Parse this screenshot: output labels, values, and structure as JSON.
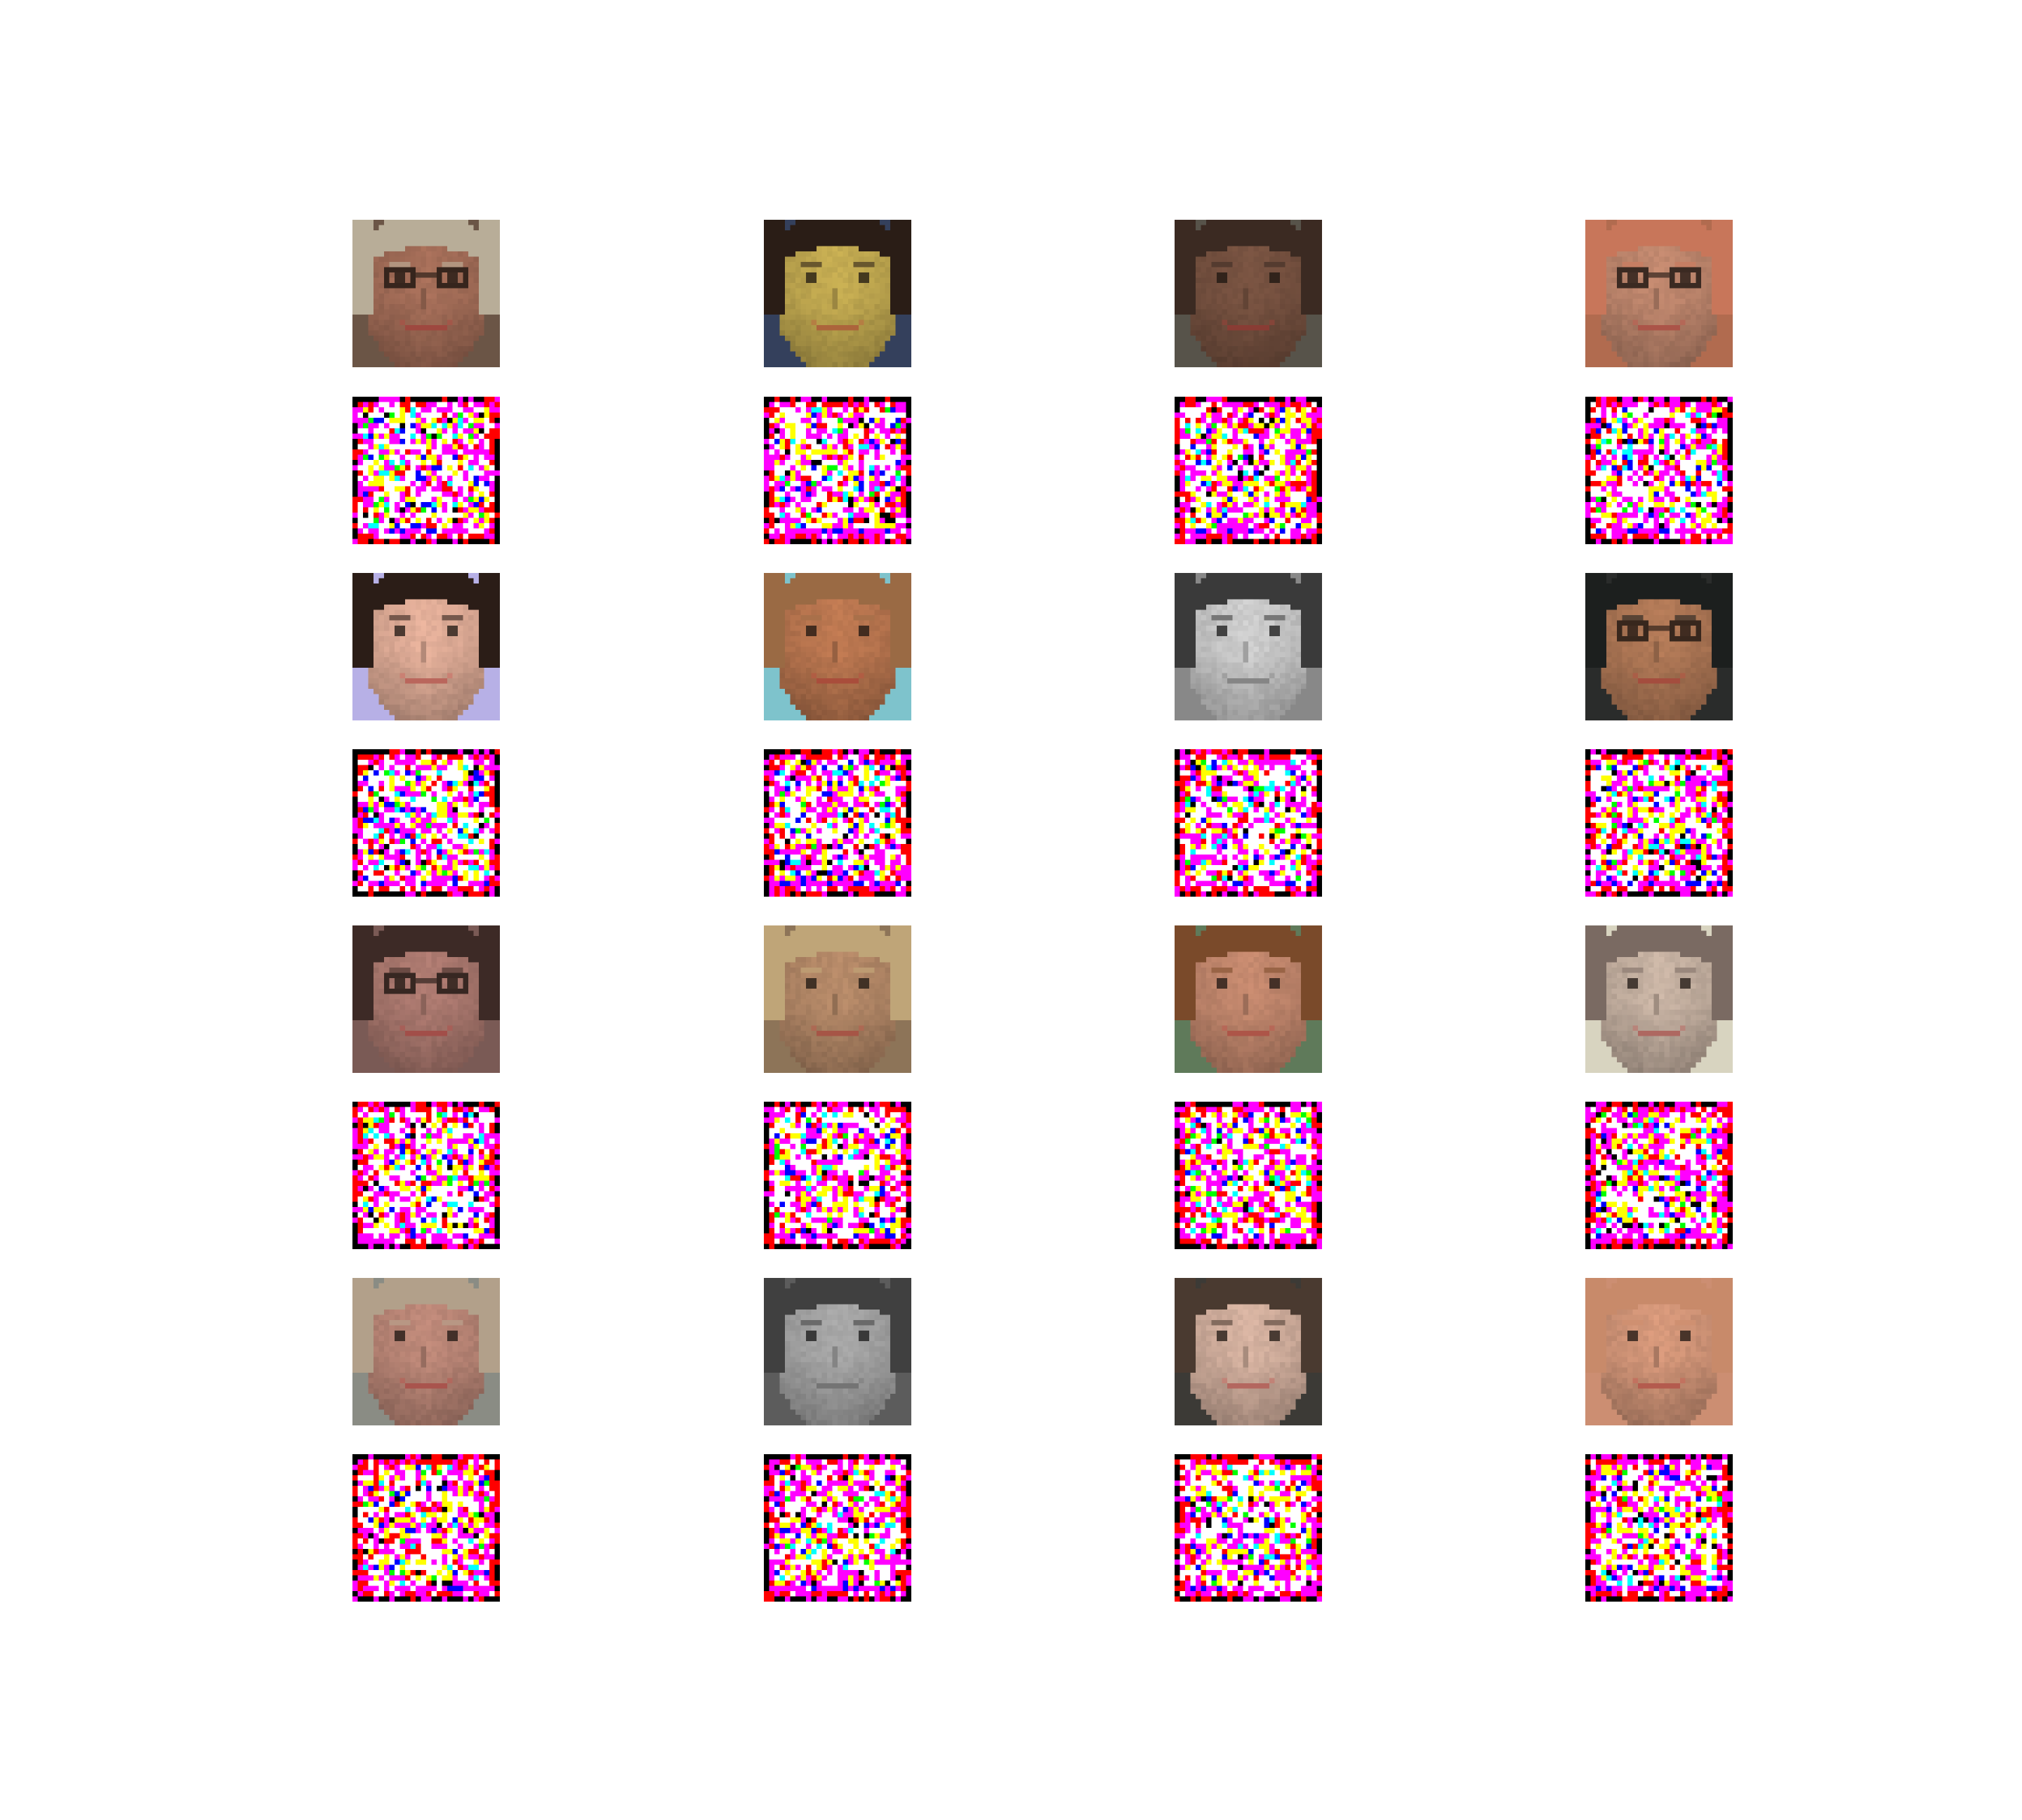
{
  "figure": {
    "background": "#ffffff",
    "grid": {
      "columns": 4,
      "rows": 8
    },
    "row_kinds": [
      "face",
      "noise",
      "face",
      "noise",
      "face",
      "noise",
      "face",
      "noise"
    ],
    "pixels_per_side": 28,
    "noise_palette": [
      "#ff00ff",
      "#ffffff",
      "#ffff00",
      "#ff0000",
      "#000000",
      "#0000ff",
      "#00ffff",
      "#00ff00"
    ],
    "faces": [
      {
        "skin": "#a8705a",
        "hair": "#b8ad98",
        "bg": "#6b5546",
        "glasses": true,
        "grayscale": false
      },
      {
        "skin": "#c6ad52",
        "hair": "#2a1d16",
        "bg": "#34405c",
        "glasses": false,
        "grayscale": false
      },
      {
        "skin": "#7a5442",
        "hair": "#3b2a22",
        "bg": "#57534a",
        "glasses": false,
        "grayscale": false
      },
      {
        "skin": "#c48a70",
        "hair": "#c8765a",
        "bg": "#b16b4f",
        "glasses": true,
        "grayscale": false
      },
      {
        "skin": "#e6b19b",
        "hair": "#2b1d17",
        "bg": "#b7b0e6",
        "glasses": false,
        "grayscale": false
      },
      {
        "skin": "#c07a52",
        "hair": "#9a6a44",
        "bg": "#7ec3cc",
        "glasses": false,
        "grayscale": false
      },
      {
        "skin": "#cfcfcf",
        "hair": "#3a3a3a",
        "bg": "#888888",
        "glasses": false,
        "grayscale": true
      },
      {
        "skin": "#b47b58",
        "hair": "#1c1f1e",
        "bg": "#2a2c2b",
        "glasses": true,
        "grayscale": false
      },
      {
        "skin": "#b07c72",
        "hair": "#3d2a26",
        "bg": "#7a5a55",
        "glasses": true,
        "grayscale": false
      },
      {
        "skin": "#b98c6a",
        "hair": "#bfa578",
        "bg": "#8d7458",
        "glasses": false,
        "grayscale": false
      },
      {
        "skin": "#c88b70",
        "hair": "#7a4a2a",
        "bg": "#5f7a5a",
        "glasses": false,
        "grayscale": false
      },
      {
        "skin": "#cbb6a6",
        "hair": "#7a6a62",
        "bg": "#d8d4c0",
        "glasses": false,
        "grayscale": false
      },
      {
        "skin": "#c08a7a",
        "hair": "#b2a08a",
        "bg": "#8a8c84",
        "glasses": false,
        "grayscale": false
      },
      {
        "skin": "#a9a9a9",
        "hair": "#404040",
        "bg": "#5c5c5c",
        "glasses": false,
        "grayscale": true
      },
      {
        "skin": "#d8b4a2",
        "hair": "#4a3a30",
        "bg": "#3c3a36",
        "glasses": false,
        "grayscale": false
      },
      {
        "skin": "#d99a7c",
        "hair": "#c88a6a",
        "bg": "#cc8e72",
        "glasses": false,
        "grayscale": false
      }
    ]
  }
}
